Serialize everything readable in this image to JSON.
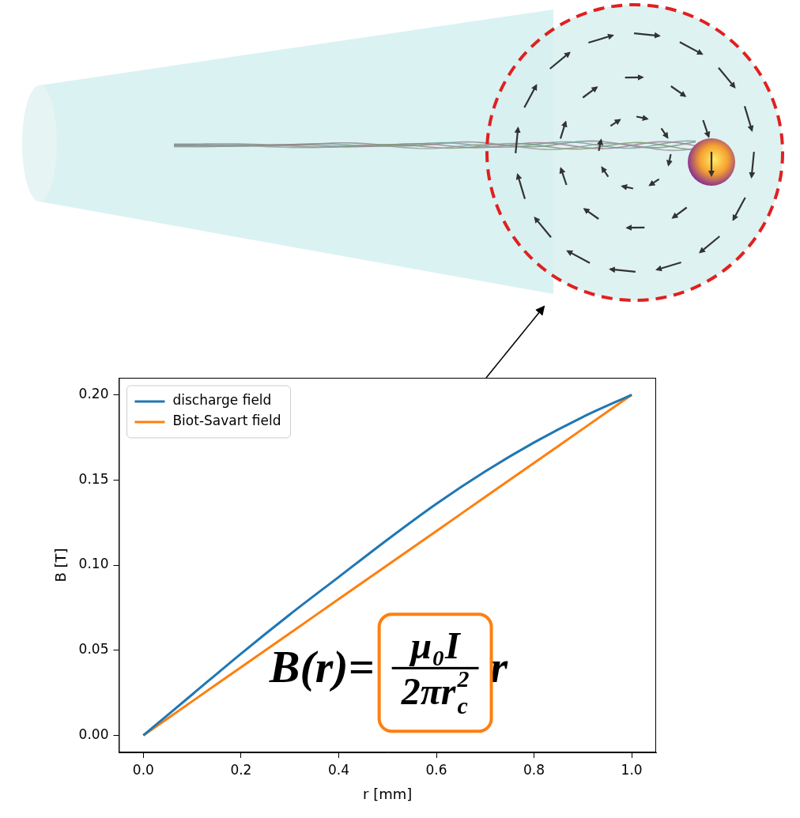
{
  "chart_data": {
    "type": "line",
    "x_label": "r [mm]",
    "y_label": "B [T]",
    "xlim": [
      -0.05,
      1.05
    ],
    "ylim": [
      -0.01,
      0.21
    ],
    "xticks": [
      {
        "value": 0,
        "label": "0.0"
      },
      {
        "value": 0.2,
        "label": "0.2"
      },
      {
        "value": 0.4,
        "label": "0.4"
      },
      {
        "value": 0.6,
        "label": "0.6"
      },
      {
        "value": 0.8,
        "label": "0.8"
      },
      {
        "value": 1,
        "label": "1.0"
      }
    ],
    "yticks": [
      {
        "value": 0,
        "label": "0.00"
      },
      {
        "value": 0.05,
        "label": "0.05"
      },
      {
        "value": 0.1,
        "label": "0.10"
      },
      {
        "value": 0.15,
        "label": "0.15"
      },
      {
        "value": 0.2,
        "label": "0.20"
      }
    ],
    "grid": false,
    "legend": "upper left",
    "x": [
      0,
      0.1,
      0.2,
      0.3,
      0.4,
      0.5,
      0.6,
      0.7,
      0.8,
      0.9,
      1.0
    ],
    "series": [
      {
        "name": "discharge field",
        "color": "#1f77b4",
        "values": [
          0,
          0.024,
          0.048,
          0.071,
          0.093,
          0.115,
          0.136,
          0.155,
          0.172,
          0.187,
          0.2
        ]
      },
      {
        "name": "Biot-Savart field",
        "color": "#ff7f0e",
        "values": [
          0,
          0.02,
          0.04,
          0.06,
          0.08,
          0.1,
          0.12,
          0.14,
          0.16,
          0.18,
          0.2
        ]
      }
    ],
    "annotations": [
      {
        "left": "B(r)=",
        "numerator": "μ₀I",
        "denominator": "2πr",
        "denominator_superscript": "2",
        "denominator_subscript": "c",
        "right": "r",
        "color": "#ff7f0e"
      }
    ]
  }
}
